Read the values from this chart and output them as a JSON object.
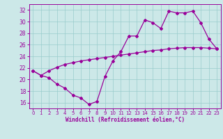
{
  "xlabel": "Windchill (Refroidissement éolien,°C)",
  "xlim": [
    -0.5,
    23.5
  ],
  "ylim": [
    15.0,
    33.0
  ],
  "xticks": [
    0,
    1,
    2,
    3,
    4,
    5,
    6,
    7,
    8,
    9,
    10,
    11,
    12,
    13,
    14,
    15,
    16,
    17,
    18,
    19,
    20,
    21,
    22,
    23
  ],
  "yticks": [
    16,
    18,
    20,
    22,
    24,
    26,
    28,
    30,
    32
  ],
  "line1_x": [
    0,
    1,
    2,
    3,
    4,
    5,
    6,
    7,
    8,
    9,
    10,
    11,
    12,
    13,
    14,
    15,
    16,
    17,
    18,
    19,
    20,
    21,
    22,
    23
  ],
  "line1_y": [
    21.5,
    20.7,
    20.3,
    19.2,
    18.5,
    17.3,
    16.8,
    15.7,
    16.2,
    20.5,
    23.2,
    24.8,
    27.5,
    27.5,
    30.3,
    29.8,
    28.8,
    31.8,
    31.5,
    31.5,
    31.8,
    29.8,
    27.0,
    25.3
  ],
  "line2_x": [
    0,
    1,
    2,
    3,
    4,
    5,
    6,
    7,
    8,
    9,
    10,
    11,
    12,
    13,
    14,
    15,
    16,
    17,
    18,
    19,
    20,
    21,
    22,
    23
  ],
  "line2_y": [
    21.5,
    20.7,
    21.5,
    22.1,
    22.6,
    22.9,
    23.2,
    23.4,
    23.6,
    23.8,
    24.0,
    24.2,
    24.4,
    24.6,
    24.8,
    25.0,
    25.1,
    25.3,
    25.4,
    25.5,
    25.5,
    25.5,
    25.4,
    25.3
  ],
  "line_color": "#990099",
  "bg_color": "#cce8e8",
  "grid_color": "#99cccc",
  "marker": "D",
  "marker_size": 2,
  "line_width": 0.9
}
